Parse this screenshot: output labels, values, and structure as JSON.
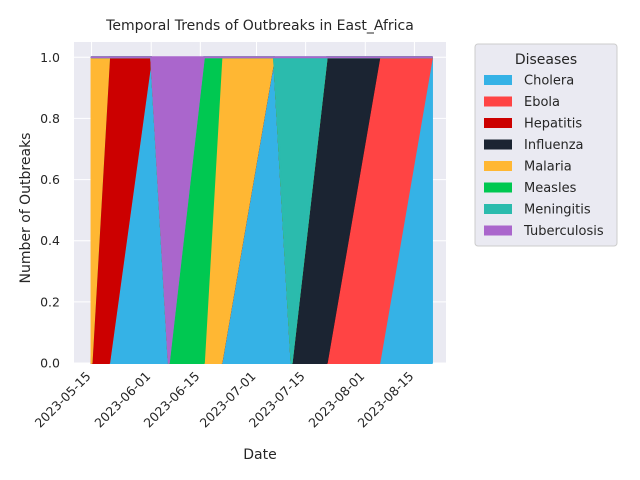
{
  "chart_data": {
    "type": "area",
    "title": "Temporal Trends of Outbreaks in East_Africa",
    "xlabel": "Date",
    "ylabel": "Number of Outbreaks",
    "ylim": [
      0,
      1.05
    ],
    "xlim": [
      "2023-05-10",
      "2023-08-24"
    ],
    "grid": true,
    "stacked": true,
    "legend_title": "Diseases",
    "legend_position": "outside-right",
    "x_ticks": [
      "2023-05-15",
      "2023-06-01",
      "2023-06-15",
      "2023-07-01",
      "2023-07-15",
      "2023-08-01",
      "2023-08-15"
    ],
    "y_ticks": [
      "0.0",
      "0.2",
      "0.4",
      "0.6",
      "0.8",
      "1.0"
    ],
    "x": [
      "2023-05-15",
      "2023-05-20",
      "2023-06-01",
      "2023-06-06",
      "2023-06-16",
      "2023-06-21",
      "2023-07-06",
      "2023-07-11",
      "2023-07-21",
      "2023-08-05",
      "2023-08-20"
    ],
    "series": [
      {
        "name": "Cholera",
        "color": "#35b2e6",
        "values": [
          0,
          0,
          1,
          0,
          0,
          0,
          1,
          0,
          0,
          0,
          1
        ]
      },
      {
        "name": "Ebola",
        "color": "#ff4444",
        "values": [
          0,
          0,
          0,
          0,
          0,
          0,
          0,
          0,
          0,
          1,
          0
        ]
      },
      {
        "name": "Hepatitis",
        "color": "#cc0000",
        "values": [
          0,
          1,
          0,
          0,
          0,
          0,
          0,
          0,
          0,
          0,
          0
        ]
      },
      {
        "name": "Influenza",
        "color": "#1b2432",
        "values": [
          0,
          0,
          0,
          0,
          0,
          0,
          0,
          0,
          1,
          0,
          0
        ]
      },
      {
        "name": "Malaria",
        "color": "#ffb733",
        "values": [
          1,
          0,
          0,
          0,
          0,
          1,
          0,
          0,
          0,
          0,
          0
        ]
      },
      {
        "name": "Measles",
        "color": "#00c851",
        "values": [
          0,
          0,
          0,
          0,
          1,
          0,
          0,
          0,
          0,
          0,
          0
        ]
      },
      {
        "name": "Meningitis",
        "color": "#2bbbad",
        "values": [
          0,
          0,
          0,
          0,
          0,
          0,
          0,
          1,
          0,
          0,
          0
        ]
      },
      {
        "name": "Tuberculosis",
        "color": "#aa66cc",
        "values": [
          0,
          0,
          0,
          1,
          0,
          0,
          0,
          0,
          0,
          0,
          0
        ]
      }
    ]
  }
}
